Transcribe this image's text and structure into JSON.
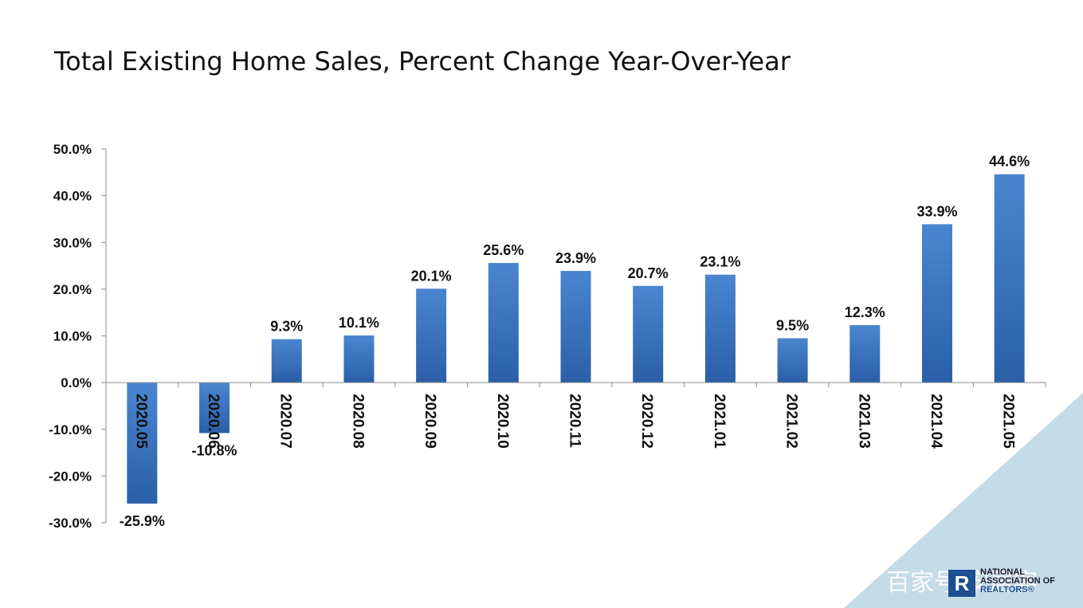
{
  "chart_data": {
    "type": "bar",
    "title": "Total Existing Home Sales, Percent Change Year-Over-Year",
    "categories": [
      "2020.05",
      "2020.06",
      "2020.07",
      "2020.08",
      "2020.09",
      "2020.10",
      "2020.11",
      "2020.12",
      "2021.01",
      "2021.02",
      "2021.03",
      "2021.04",
      "2021.05"
    ],
    "values": [
      -25.9,
      -10.8,
      9.3,
      10.1,
      20.1,
      25.6,
      23.9,
      20.7,
      23.1,
      9.5,
      12.3,
      33.9,
      44.6
    ],
    "data_labels": [
      "-25.9%",
      "-10.8%",
      "9.3%",
      "10.1%",
      "20.1%",
      "25.6%",
      "23.9%",
      "20.7%",
      "23.1%",
      "9.5%",
      "12.3%",
      "33.9%",
      "44.6%"
    ],
    "yticks": [
      50,
      40,
      30,
      20,
      10,
      0,
      -10,
      -20,
      -30
    ],
    "ytick_labels": [
      "50.0%",
      "40.0%",
      "30.0%",
      "20.0%",
      "10.0%",
      "0.0%",
      "-10.0%",
      "-20.0%",
      "-30.0%"
    ],
    "ylim": [
      -30,
      50
    ],
    "xlabel": "",
    "ylabel": "",
    "grid": false,
    "bar_color_top": "#4a86d0",
    "bar_color_bottom": "#2a5fa8"
  },
  "branding": {
    "logo_line1": "NATIONAL",
    "logo_line2": "ASSOCIATION OF",
    "logo_line3": "REALTORS®",
    "logo_mark": "R",
    "watermark": "百家号/安居客"
  }
}
